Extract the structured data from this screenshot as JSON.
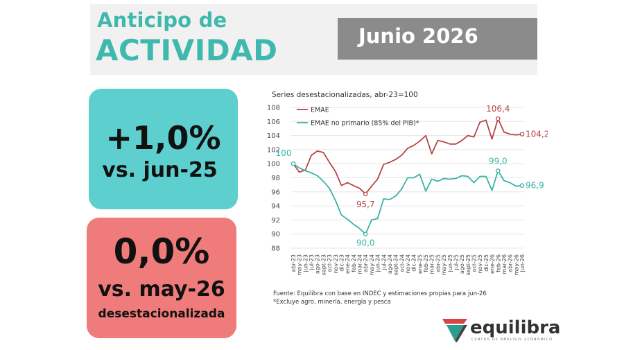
{
  "header": {
    "title_line1": "Anticipo de",
    "title_line2": "ACTIVIDAD",
    "date": "Junio 2026"
  },
  "card_yoy": {
    "value": "+1,0%",
    "label": "vs. jun-25"
  },
  "card_mom": {
    "value": "0,0%",
    "label": "vs. may-26",
    "note": "desestacionalizada"
  },
  "chart_data": {
    "type": "line",
    "title": "Series desestacionalizadas, abr-23=100",
    "categories": [
      "abr-23",
      "may-23",
      "jun-23",
      "jul-23",
      "ago-23",
      "sept-23",
      "oct-23",
      "nov-23",
      "dic-23",
      "ene-24",
      "feb-24",
      "mar-24",
      "abr-24",
      "may-24",
      "jun-24",
      "jul-24",
      "ago-24",
      "sept-24",
      "oct-24",
      "nov-24",
      "dic-24",
      "ene-25",
      "feb-25",
      "mar-25",
      "abr-25",
      "may-25",
      "jun-25",
      "jul-25",
      "ago-25",
      "sept-25",
      "oct-25",
      "nov-25",
      "dic-25",
      "ene-26",
      "feb-26",
      "mar-26",
      "abr-26",
      "may-26",
      "jun-26"
    ],
    "series": [
      {
        "name": "EMAE",
        "color": "#b84444",
        "values": [
          100,
          98.8,
          99.1,
          101.2,
          101.8,
          101.6,
          100.2,
          98.9,
          96.9,
          97.3,
          96.9,
          96.5,
          95.7,
          96.8,
          97.8,
          99.9,
          100.2,
          100.6,
          101.2,
          102.2,
          102.6,
          103.2,
          104.0,
          101.4,
          103.3,
          103.1,
          102.8,
          102.8,
          103.3,
          104.0,
          103.8,
          105.9,
          106.2,
          103.5,
          106.4,
          104.5,
          104.2,
          104.1,
          104.2
        ]
      },
      {
        "name": "EMAE no primario (85% del PIB)*",
        "color": "#36b4a5",
        "values": [
          100,
          99.4,
          99.0,
          98.7,
          98.3,
          97.5,
          96.5,
          94.8,
          92.7,
          92.1,
          91.4,
          90.8,
          90.0,
          92.0,
          92.2,
          95.0,
          94.9,
          95.4,
          96.4,
          98.0,
          98.0,
          98.5,
          96.1,
          97.8,
          97.5,
          97.9,
          97.8,
          97.9,
          98.3,
          98.2,
          97.3,
          98.2,
          98.2,
          96.2,
          99.0,
          97.6,
          97.3,
          96.8,
          96.9
        ]
      }
    ],
    "annotations": [
      {
        "text": "100",
        "series": 1,
        "index": 0
      },
      {
        "text": "95,7",
        "series": 0,
        "index": 12
      },
      {
        "text": "90,0",
        "series": 1,
        "index": 12
      },
      {
        "text": "106,4",
        "series": 0,
        "index": 34
      },
      {
        "text": "99,0",
        "series": 1,
        "index": 34
      },
      {
        "text": "104,2",
        "series": 0,
        "index": 38
      },
      {
        "text": "96,9",
        "series": 1,
        "index": 38
      }
    ],
    "ylim": [
      88,
      108
    ],
    "yticks": [
      88,
      90,
      92,
      94,
      96,
      98,
      100,
      102,
      104,
      106,
      108
    ],
    "grid": true,
    "legend_position": "top-left"
  },
  "source": {
    "line1": "Fuente: Equilibra con base en INDEC y estimaciones propias para jun-26",
    "line2": "*Excluye agro, minería, energía y pesca"
  },
  "brand": {
    "name": "equilibra",
    "tagline": "CENTRO DE ANÁLISIS ECONÓMICO"
  }
}
